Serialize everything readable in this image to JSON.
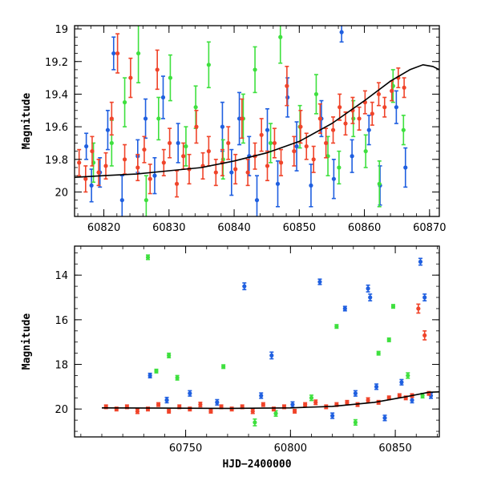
{
  "chart_data": [
    {
      "type": "scatter",
      "xlabel": "",
      "ylabel": "Magnitude",
      "xlim": [
        60815.5,
        60871.5
      ],
      "ylim": [
        20.15,
        18.98
      ],
      "y_inverted": true,
      "xticks": [
        60820,
        60830,
        60840,
        60850,
        60860,
        60870
      ],
      "xtick_labels": [
        "60820",
        "60830",
        "60840",
        "60850",
        "60860",
        "60870"
      ],
      "yticks": [
        19,
        19.2,
        19.4,
        19.6,
        19.8,
        20
      ],
      "ytick_labels": [
        "19",
        "19.2",
        "19.4",
        "19.6",
        "19.8",
        "20"
      ],
      "series": [
        {
          "color": "#1f5fe0",
          "points": [
            [
              60817.3,
              19.72,
              0.08
            ],
            [
              60818.1,
              19.96,
              0.1
            ],
            [
              60819.4,
              19.88,
              0.09
            ],
            [
              60820.6,
              19.62,
              0.12
            ],
            [
              60821.5,
              19.15,
              0.1
            ],
            [
              60822.8,
              20.05,
              0.15
            ],
            [
              60825.2,
              19.78,
              0.1
            ],
            [
              60826.4,
              19.55,
              0.12
            ],
            [
              60827.8,
              19.9,
              0.11
            ],
            [
              60829.1,
              19.42,
              0.13
            ],
            [
              60831.4,
              19.7,
              0.12
            ],
            [
              60838.2,
              19.6,
              0.15
            ],
            [
              60839.6,
              19.88,
              0.14
            ],
            [
              60840.8,
              19.55,
              0.16
            ],
            [
              60842.3,
              19.78,
              0.12
            ],
            [
              60843.5,
              20.05,
              0.15
            ],
            [
              60845.1,
              19.62,
              0.13
            ],
            [
              60846.7,
              19.95,
              0.14
            ],
            [
              60848.2,
              19.42,
              0.12
            ],
            [
              60849.6,
              19.72,
              0.15
            ],
            [
              60851.8,
              19.96,
              0.13
            ],
            [
              60853.4,
              19.55,
              0.11
            ],
            [
              60855.3,
              19.92,
              0.12
            ],
            [
              60856.5,
              19.02,
              0.06
            ],
            [
              60858.1,
              19.78,
              0.1
            ],
            [
              60860.7,
              19.62,
              0.09
            ],
            [
              60862.4,
              19.96,
              0.12
            ],
            [
              60864.9,
              19.48,
              0.1
            ],
            [
              60866.3,
              19.85,
              0.12
            ]
          ]
        },
        {
          "color": "#3ee03e",
          "points": [
            [
              60818.4,
              19.82,
              0.12
            ],
            [
              60821.2,
              19.7,
              0.14
            ],
            [
              60823.2,
              19.45,
              0.15
            ],
            [
              60825.3,
              19.15,
              0.18
            ],
            [
              60826.5,
              20.05,
              0.15
            ],
            [
              60828.4,
              19.55,
              0.13
            ],
            [
              60830.2,
              19.3,
              0.14
            ],
            [
              60832.6,
              19.72,
              0.12
            ],
            [
              60834.1,
              19.48,
              0.13
            ],
            [
              60836.1,
              19.22,
              0.14
            ],
            [
              60838.3,
              19.8,
              0.12
            ],
            [
              60841.4,
              19.55,
              0.15
            ],
            [
              60843.2,
              19.25,
              0.14
            ],
            [
              60845.6,
              19.7,
              0.12
            ],
            [
              60847.1,
              19.05,
              0.16
            ],
            [
              60850.1,
              19.6,
              0.13
            ],
            [
              60852.6,
              19.4,
              0.12
            ],
            [
              60854.4,
              19.78,
              0.12
            ],
            [
              60856.1,
              19.85,
              0.1
            ],
            [
              60858.3,
              19.55,
              0.11
            ],
            [
              60860.2,
              19.75,
              0.1
            ],
            [
              60862.3,
              19.95,
              0.14
            ],
            [
              60864.4,
              19.35,
              0.1
            ],
            [
              60866.0,
              19.62,
              0.09
            ]
          ]
        },
        {
          "color": "#f0442a",
          "points": [
            [
              60816.2,
              19.82,
              0.08
            ],
            [
              60817.2,
              19.92,
              0.08
            ],
            [
              60818.2,
              19.75,
              0.09
            ],
            [
              60819.2,
              19.88,
              0.08
            ],
            [
              60820.3,
              19.84,
              0.08
            ],
            [
              60821.2,
              19.55,
              0.1
            ],
            [
              60822.1,
              19.15,
              0.12
            ],
            [
              60823.2,
              19.8,
              0.09
            ],
            [
              60824.1,
              19.3,
              0.12
            ],
            [
              60825.2,
              19.85,
              0.08
            ],
            [
              60826.2,
              19.74,
              0.08
            ],
            [
              60827.1,
              19.92,
              0.09
            ],
            [
              60828.2,
              19.25,
              0.12
            ],
            [
              60829.2,
              19.82,
              0.08
            ],
            [
              60830.1,
              19.7,
              0.09
            ],
            [
              60831.2,
              19.95,
              0.08
            ],
            [
              60832.2,
              19.78,
              0.08
            ],
            [
              60833.1,
              19.86,
              0.09
            ],
            [
              60834.2,
              19.6,
              0.1
            ],
            [
              60835.2,
              19.84,
              0.08
            ],
            [
              60836.1,
              19.75,
              0.09
            ],
            [
              60837.2,
              19.88,
              0.08
            ],
            [
              60838.2,
              19.82,
              0.08
            ],
            [
              60839.1,
              19.7,
              0.1
            ],
            [
              60840.2,
              19.86,
              0.09
            ],
            [
              60841.2,
              19.55,
              0.12
            ],
            [
              60842.1,
              19.88,
              0.08
            ],
            [
              60843.2,
              19.78,
              0.08
            ],
            [
              60844.2,
              19.65,
              0.1
            ],
            [
              60845.1,
              19.84,
              0.09
            ],
            [
              60846.2,
              19.7,
              0.09
            ],
            [
              60847.2,
              19.82,
              0.08
            ],
            [
              60848.1,
              19.35,
              0.12
            ],
            [
              60849.2,
              19.75,
              0.09
            ],
            [
              60850.2,
              19.6,
              0.1
            ],
            [
              60851.1,
              19.72,
              0.08
            ],
            [
              60852.2,
              19.8,
              0.08
            ],
            [
              60853.2,
              19.55,
              0.09
            ],
            [
              60854.1,
              19.7,
              0.09
            ],
            [
              60855.2,
              19.62,
              0.08
            ],
            [
              60856.2,
              19.48,
              0.08
            ],
            [
              60857.1,
              19.58,
              0.07
            ],
            [
              60858.2,
              19.5,
              0.08
            ],
            [
              60859.2,
              19.55,
              0.07
            ],
            [
              60860.1,
              19.45,
              0.07
            ],
            [
              60861.2,
              19.52,
              0.07
            ],
            [
              60862.2,
              19.4,
              0.07
            ],
            [
              60863.1,
              19.48,
              0.06
            ],
            [
              60864.2,
              19.38,
              0.06
            ],
            [
              60865.2,
              19.3,
              0.06
            ],
            [
              60866.1,
              19.36,
              0.06
            ]
          ]
        }
      ],
      "fit_curve": [
        [
          60815.5,
          19.91
        ],
        [
          60820,
          19.9
        ],
        [
          60825,
          19.89
        ],
        [
          60830,
          19.87
        ],
        [
          60835,
          19.85
        ],
        [
          60840,
          19.81
        ],
        [
          60845,
          19.76
        ],
        [
          60850,
          19.69
        ],
        [
          60855,
          19.58
        ],
        [
          60860,
          19.44
        ],
        [
          60864,
          19.32
        ],
        [
          60867,
          19.25
        ],
        [
          60869,
          19.22
        ],
        [
          60870.5,
          19.23
        ],
        [
          60871.5,
          19.25
        ]
      ]
    },
    {
      "type": "scatter",
      "xlabel": "HJD−2400000",
      "ylabel": "Magnitude",
      "xlim": [
        60697,
        60871
      ],
      "ylim": [
        21.25,
        12.7
      ],
      "y_inverted": true,
      "xticks": [
        60750,
        60800,
        60850
      ],
      "xtick_labels": [
        "60750",
        "60800",
        "60850"
      ],
      "yticks": [
        14,
        16,
        18,
        20
      ],
      "ytick_labels": [
        "14",
        "16",
        "18",
        "20"
      ],
      "series": [
        {
          "color": "#1f5fe0",
          "points": [
            [
              60733,
              18.5,
              0.1
            ],
            [
              60741,
              19.6,
              0.12
            ],
            [
              60752,
              19.3,
              0.12
            ],
            [
              60765,
              19.7,
              0.12
            ],
            [
              60778,
              14.5,
              0.15
            ],
            [
              60786,
              19.4,
              0.12
            ],
            [
              60791,
              17.6,
              0.15
            ],
            [
              60801,
              19.8,
              0.12
            ],
            [
              60814,
              14.3,
              0.12
            ],
            [
              60820,
              20.3,
              0.12
            ],
            [
              60826,
              15.5,
              0.1
            ],
            [
              60831,
              19.3,
              0.12
            ],
            [
              60837,
              14.6,
              0.15
            ],
            [
              60838,
              15.0,
              0.15
            ],
            [
              60841,
              19.0,
              0.12
            ],
            [
              60845,
              20.4,
              0.12
            ],
            [
              60853,
              18.8,
              0.12
            ],
            [
              60858,
              19.6,
              0.12
            ],
            [
              60862,
              13.4,
              0.15
            ],
            [
              60864,
              15.0,
              0.15
            ],
            [
              60867,
              19.4,
              0.12
            ]
          ]
        },
        {
          "color": "#3ee03e",
          "points": [
            [
              60732,
              13.2,
              0.1
            ],
            [
              60736,
              18.3,
              0.08
            ],
            [
              60742,
              17.6,
              0.1
            ],
            [
              60746,
              18.6,
              0.1
            ],
            [
              60768,
              18.1,
              0.08
            ],
            [
              60783,
              20.6,
              0.15
            ],
            [
              60793,
              20.2,
              0.12
            ],
            [
              60810,
              19.5,
              0.12
            ],
            [
              60822,
              16.3,
              0.08
            ],
            [
              60831,
              20.6,
              0.12
            ],
            [
              60842,
              17.5,
              0.08
            ],
            [
              60847,
              16.9,
              0.08
            ],
            [
              60849,
              15.4,
              0.08
            ],
            [
              60856,
              18.5,
              0.12
            ],
            [
              60863,
              19.4,
              0.1
            ]
          ]
        },
        {
          "color": "#f0442a",
          "points": [
            [
              60712,
              19.9,
              0.08
            ],
            [
              60717,
              20.0,
              0.08
            ],
            [
              60722,
              19.9,
              0.08
            ],
            [
              60727,
              20.1,
              0.1
            ],
            [
              60732,
              20.0,
              0.08
            ],
            [
              60737,
              19.8,
              0.08
            ],
            [
              60742,
              20.1,
              0.08
            ],
            [
              60747,
              19.9,
              0.08
            ],
            [
              60752,
              20.0,
              0.08
            ],
            [
              60757,
              19.8,
              0.1
            ],
            [
              60762,
              20.1,
              0.08
            ],
            [
              60767,
              19.9,
              0.08
            ],
            [
              60772,
              20.0,
              0.08
            ],
            [
              60777,
              19.9,
              0.08
            ],
            [
              60782,
              20.1,
              0.1
            ],
            [
              60787,
              19.8,
              0.08
            ],
            [
              60792,
              20.0,
              0.08
            ],
            [
              60797,
              19.9,
              0.08
            ],
            [
              60802,
              20.1,
              0.08
            ],
            [
              60807,
              19.8,
              0.08
            ],
            [
              60812,
              19.7,
              0.1
            ],
            [
              60817,
              19.9,
              0.08
            ],
            [
              60822,
              19.8,
              0.08
            ],
            [
              60827,
              19.7,
              0.08
            ],
            [
              60832,
              19.8,
              0.08
            ],
            [
              60837,
              19.6,
              0.1
            ],
            [
              60842,
              19.7,
              0.08
            ],
            [
              60847,
              19.5,
              0.08
            ],
            [
              60852,
              19.4,
              0.08
            ],
            [
              60855,
              19.5,
              0.08
            ],
            [
              60858,
              19.4,
              0.08
            ],
            [
              60861,
              15.5,
              0.2
            ],
            [
              60864,
              16.7,
              0.2
            ],
            [
              60866,
              19.3,
              0.08
            ]
          ]
        }
      ],
      "fit_curve": [
        [
          60710,
          19.95
        ],
        [
          60740,
          19.96
        ],
        [
          60770,
          19.97
        ],
        [
          60800,
          19.95
        ],
        [
          60820,
          19.88
        ],
        [
          60840,
          19.7
        ],
        [
          60855,
          19.45
        ],
        [
          60866,
          19.25
        ],
        [
          60871,
          19.23
        ]
      ]
    }
  ]
}
